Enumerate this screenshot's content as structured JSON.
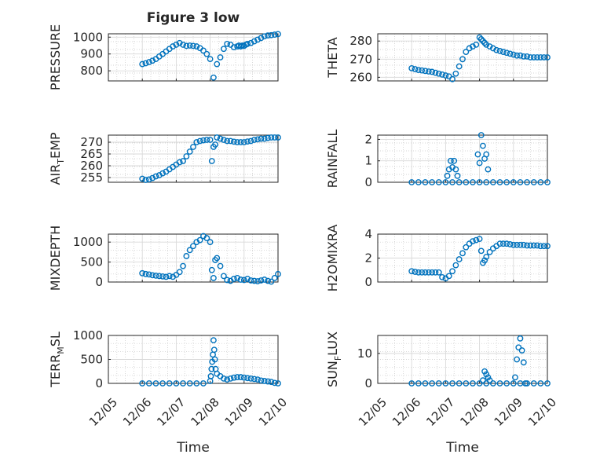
{
  "figure": {
    "title": "Figure 3 low",
    "marker_color": "#0072BD",
    "x_tick_labels": [
      "12/05",
      "12/06",
      "12/07",
      "12/08",
      "12/09",
      "12/10"
    ],
    "xlabel": "Time"
  },
  "chart_data": [
    {
      "type": "scatter",
      "ylabel": "PRESSURE",
      "ylim": [
        740,
        1020
      ],
      "yticks": [
        800,
        900,
        1000
      ],
      "xlim": [
        0.0,
        4.0
      ],
      "grid": true,
      "minor_grid": true,
      "x": [
        0.0,
        0.1,
        0.2,
        0.3,
        0.4,
        0.5,
        0.6,
        0.7,
        0.8,
        0.9,
        1.0,
        1.1,
        1.2,
        1.3,
        1.4,
        1.5,
        1.6,
        1.7,
        1.8,
        1.9,
        2.0,
        2.1,
        2.2,
        2.3,
        2.4,
        2.5,
        2.6,
        2.7,
        2.8,
        2.85,
        2.9,
        2.95,
        3.0,
        3.05,
        3.1,
        3.2,
        3.3,
        3.4,
        3.5,
        3.6,
        3.7,
        3.8,
        3.9,
        4.0
      ],
      "y": [
        840,
        845,
        852,
        860,
        870,
        885,
        900,
        915,
        930,
        945,
        955,
        965,
        955,
        948,
        950,
        948,
        945,
        935,
        920,
        900,
        870,
        760,
        840,
        880,
        930,
        960,
        955,
        940,
        945,
        950,
        945,
        950,
        948,
        955,
        960,
        965,
        975,
        985,
        995,
        1005,
        1010,
        1012,
        1015,
        1018
      ]
    },
    {
      "type": "scatter",
      "ylabel": "THETA",
      "ylim": [
        258,
        284
      ],
      "yticks": [
        260,
        270,
        280
      ],
      "xlim": [
        0.0,
        4.0
      ],
      "grid": true,
      "minor_grid": true,
      "x": [
        0.0,
        0.1,
        0.2,
        0.3,
        0.4,
        0.5,
        0.6,
        0.7,
        0.8,
        0.9,
        1.0,
        1.1,
        1.2,
        1.3,
        1.4,
        1.5,
        1.6,
        1.7,
        1.8,
        1.9,
        2.0,
        2.05,
        2.1,
        2.15,
        2.2,
        2.3,
        2.4,
        2.5,
        2.6,
        2.7,
        2.8,
        2.9,
        3.0,
        3.1,
        3.2,
        3.3,
        3.4,
        3.5,
        3.6,
        3.7,
        3.8,
        3.9,
        4.0
      ],
      "y": [
        265,
        264.5,
        264,
        263.8,
        263.5,
        263.2,
        263,
        262.5,
        262,
        261.5,
        261,
        260.5,
        259,
        262,
        266,
        270,
        274,
        276,
        277,
        278,
        282,
        281,
        280,
        279,
        278,
        277,
        276,
        275,
        274.5,
        274,
        273.5,
        273,
        272.5,
        272,
        272,
        271.5,
        271.5,
        271,
        271,
        271,
        271,
        271,
        271
      ]
    },
    {
      "type": "scatter",
      "ylabel": "AIR_TEMP",
      "ylim": [
        253,
        273
      ],
      "yticks": [
        255,
        260,
        265,
        270
      ],
      "xlim": [
        0.0,
        4.0
      ],
      "grid": true,
      "minor_grid": true,
      "x": [
        0.0,
        0.1,
        0.2,
        0.3,
        0.4,
        0.5,
        0.6,
        0.7,
        0.8,
        0.9,
        1.0,
        1.1,
        1.2,
        1.3,
        1.4,
        1.5,
        1.6,
        1.7,
        1.8,
        1.9,
        2.0,
        2.05,
        2.1,
        2.15,
        2.2,
        2.3,
        2.4,
        2.5,
        2.6,
        2.7,
        2.8,
        2.9,
        3.0,
        3.1,
        3.2,
        3.3,
        3.4,
        3.5,
        3.6,
        3.7,
        3.8,
        3.9,
        4.0
      ],
      "y": [
        254.5,
        254,
        254.2,
        254.8,
        255.5,
        256,
        256.8,
        257.5,
        258.5,
        259.5,
        260.5,
        261.5,
        262,
        264,
        266,
        268,
        270,
        270.5,
        270.8,
        271,
        271,
        262,
        268,
        269,
        272,
        271.5,
        271,
        270.5,
        270.5,
        270.2,
        270,
        270,
        270,
        270.3,
        270.5,
        271,
        271.2,
        271.5,
        271.5,
        271.8,
        272,
        272,
        272
      ]
    },
    {
      "type": "scatter",
      "ylabel": "RAINFALL",
      "ylim": [
        0,
        2.2
      ],
      "yticks": [
        0,
        1,
        2
      ],
      "xlim": [
        0.0,
        4.0
      ],
      "grid": true,
      "minor_grid": true,
      "x": [
        0.0,
        0.2,
        0.4,
        0.6,
        0.8,
        1.0,
        1.2,
        1.4,
        1.6,
        1.8,
        2.0,
        2.2,
        2.4,
        2.6,
        2.8,
        3.0,
        3.2,
        3.4,
        3.6,
        3.8,
        4.0,
        1.05,
        1.1,
        1.15,
        1.2,
        1.25,
        1.3,
        1.35,
        1.95,
        2.0,
        2.05,
        2.1,
        2.15,
        2.2,
        2.25
      ],
      "y": [
        0,
        0,
        0,
        0,
        0,
        0,
        0,
        0,
        0,
        0,
        0,
        0,
        0,
        0,
        0,
        0,
        0,
        0,
        0,
        0,
        0,
        0.3,
        0.6,
        1.0,
        0.7,
        1.0,
        0.6,
        0.3,
        1.3,
        0.9,
        2.2,
        1.7,
        1.1,
        1.3,
        0.6
      ]
    },
    {
      "type": "scatter",
      "ylabel": "MIXDEPTH",
      "ylim": [
        0,
        1200
      ],
      "yticks": [
        0,
        500,
        1000
      ],
      "xlim": [
        0.0,
        4.0
      ],
      "grid": true,
      "minor_grid": true,
      "x": [
        0.0,
        0.1,
        0.2,
        0.3,
        0.4,
        0.5,
        0.6,
        0.7,
        0.8,
        0.9,
        1.0,
        1.1,
        1.2,
        1.3,
        1.4,
        1.5,
        1.6,
        1.7,
        1.8,
        1.9,
        2.0,
        2.05,
        2.1,
        2.15,
        2.2,
        2.3,
        2.4,
        2.5,
        2.6,
        2.7,
        2.8,
        2.9,
        3.0,
        3.1,
        3.2,
        3.3,
        3.4,
        3.5,
        3.6,
        3.7,
        3.8,
        3.9,
        4.0
      ],
      "y": [
        220,
        200,
        190,
        170,
        160,
        150,
        140,
        130,
        150,
        130,
        180,
        250,
        400,
        650,
        800,
        900,
        1000,
        1050,
        1150,
        1100,
        1000,
        300,
        100,
        550,
        600,
        400,
        150,
        50,
        30,
        80,
        100,
        60,
        50,
        80,
        40,
        30,
        20,
        40,
        60,
        30,
        10,
        100,
        200
      ]
    },
    {
      "type": "scatter",
      "ylabel": "H2OMIXRA",
      "ylim": [
        0,
        4
      ],
      "yticks": [
        0,
        2,
        4
      ],
      "xlim": [
        0.0,
        4.0
      ],
      "grid": true,
      "minor_grid": true,
      "x": [
        0.0,
        0.1,
        0.2,
        0.3,
        0.4,
        0.5,
        0.6,
        0.7,
        0.8,
        0.9,
        1.0,
        1.1,
        1.2,
        1.3,
        1.4,
        1.5,
        1.6,
        1.7,
        1.8,
        1.9,
        2.0,
        2.05,
        2.1,
        2.15,
        2.2,
        2.3,
        2.4,
        2.5,
        2.6,
        2.7,
        2.8,
        2.9,
        3.0,
        3.1,
        3.2,
        3.3,
        3.4,
        3.5,
        3.6,
        3.7,
        3.8,
        3.9,
        4.0
      ],
      "y": [
        0.9,
        0.85,
        0.8,
        0.8,
        0.8,
        0.8,
        0.8,
        0.8,
        0.8,
        0.4,
        0.3,
        0.5,
        0.9,
        1.4,
        1.9,
        2.4,
        2.9,
        3.2,
        3.4,
        3.5,
        3.6,
        2.6,
        1.6,
        1.8,
        2.1,
        2.5,
        2.8,
        3.0,
        3.2,
        3.2,
        3.2,
        3.15,
        3.1,
        3.1,
        3.1,
        3.1,
        3.05,
        3.05,
        3.05,
        3.05,
        3.0,
        3.0,
        3.0
      ]
    },
    {
      "type": "scatter",
      "ylabel": "TERR_MSL",
      "ylim": [
        0,
        1000
      ],
      "yticks": [
        0,
        500,
        1000
      ],
      "xlim": [
        0.0,
        4.0
      ],
      "grid": true,
      "minor_grid": true,
      "x": [
        0.0,
        0.2,
        0.4,
        0.6,
        0.8,
        1.0,
        1.2,
        1.4,
        1.6,
        1.8,
        2.0,
        2.02,
        2.04,
        2.06,
        2.08,
        2.1,
        2.12,
        2.14,
        2.16,
        2.2,
        2.3,
        2.4,
        2.5,
        2.6,
        2.7,
        2.8,
        2.9,
        3.0,
        3.1,
        3.2,
        3.3,
        3.4,
        3.5,
        3.6,
        3.7,
        3.8,
        3.9,
        4.0
      ],
      "y": [
        0,
        0,
        0,
        0,
        0,
        0,
        0,
        0,
        0,
        0,
        50,
        150,
        300,
        450,
        600,
        900,
        700,
        500,
        300,
        200,
        150,
        100,
        80,
        100,
        120,
        130,
        130,
        120,
        110,
        100,
        90,
        80,
        60,
        50,
        40,
        30,
        10,
        0
      ]
    },
    {
      "type": "scatter",
      "ylabel": "SUN_FLUX",
      "ylim": [
        0,
        16
      ],
      "yticks": [
        0,
        10
      ],
      "xlim": [
        0.0,
        4.0
      ],
      "grid": true,
      "minor_grid": true,
      "x": [
        0.0,
        0.2,
        0.4,
        0.6,
        0.8,
        1.0,
        1.2,
        1.4,
        1.6,
        1.8,
        2.0,
        2.2,
        2.4,
        2.6,
        2.8,
        3.0,
        3.2,
        3.4,
        3.6,
        3.8,
        4.0,
        2.1,
        2.15,
        2.2,
        2.25,
        2.3,
        3.05,
        3.1,
        3.15,
        3.2,
        3.25,
        3.3,
        3.35
      ],
      "y": [
        0,
        0,
        0,
        0,
        0,
        0,
        0,
        0,
        0,
        0,
        0,
        0,
        0,
        0,
        0,
        0,
        0,
        0,
        0,
        0,
        0,
        1,
        4,
        3,
        2,
        1,
        2,
        8,
        12,
        15,
        11,
        7,
        0
      ]
    }
  ]
}
